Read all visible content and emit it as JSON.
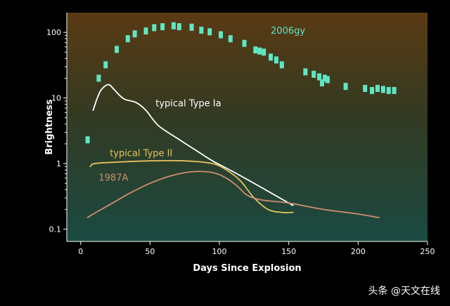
{
  "chart_data": {
    "type": "scatter",
    "title": "",
    "xlabel": "Days Since Explosion",
    "ylabel": "Brightness",
    "xlim": [
      -10,
      250
    ],
    "ylim": [
      0.065,
      200
    ],
    "y_scale": "log",
    "x_ticks": [
      0,
      50,
      100,
      150,
      200,
      250
    ],
    "y_ticks": [
      0.1,
      1,
      10,
      100
    ],
    "grid": false,
    "legend": "none",
    "series": [
      {
        "name": "2006gy",
        "type": "scatter",
        "color": "#5fe6c4",
        "points": [
          [
            5,
            2.3
          ],
          [
            13,
            20
          ],
          [
            18,
            32
          ],
          [
            26,
            55
          ],
          [
            34,
            80
          ],
          [
            39,
            95
          ],
          [
            47,
            105
          ],
          [
            53,
            118
          ],
          [
            59,
            122
          ],
          [
            67,
            126
          ],
          [
            71,
            122
          ],
          [
            80,
            120
          ],
          [
            87,
            108
          ],
          [
            93,
            102
          ],
          [
            101,
            92
          ],
          [
            108,
            80
          ],
          [
            118,
            68
          ],
          [
            126,
            54
          ],
          [
            129,
            52
          ],
          [
            132,
            50
          ],
          [
            137,
            42
          ],
          [
            141,
            38
          ],
          [
            145,
            32
          ],
          [
            162,
            25
          ],
          [
            168,
            23
          ],
          [
            172,
            21
          ],
          [
            174,
            17
          ],
          [
            176,
            20
          ],
          [
            178,
            19
          ],
          [
            191,
            15
          ],
          [
            205,
            14
          ],
          [
            210,
            13
          ],
          [
            214,
            14
          ],
          [
            218,
            13.5
          ],
          [
            222,
            13
          ],
          [
            226,
            13
          ]
        ]
      },
      {
        "name": "typical Type Ia",
        "type": "line",
        "color": "#ffffff",
        "points": [
          [
            9,
            6.5
          ],
          [
            12,
            10
          ],
          [
            15,
            13.5
          ],
          [
            20,
            16
          ],
          [
            24,
            13.5
          ],
          [
            28,
            11
          ],
          [
            32,
            9.5
          ],
          [
            40,
            8.5
          ],
          [
            47,
            6.5
          ],
          [
            56,
            3.8
          ],
          [
            70,
            2.4
          ],
          [
            85,
            1.5
          ],
          [
            95,
            1.1
          ],
          [
            110,
            0.75
          ],
          [
            125,
            0.5
          ],
          [
            140,
            0.33
          ],
          [
            153,
            0.23
          ]
        ]
      },
      {
        "name": "typical Type II",
        "type": "line",
        "color": "#e6c35a",
        "points": [
          [
            7,
            0.9
          ],
          [
            10,
            1.0
          ],
          [
            25,
            1.05
          ],
          [
            50,
            1.1
          ],
          [
            75,
            1.1
          ],
          [
            95,
            1.0
          ],
          [
            105,
            0.8
          ],
          [
            115,
            0.55
          ],
          [
            125,
            0.3
          ],
          [
            135,
            0.2
          ],
          [
            145,
            0.18
          ],
          [
            153,
            0.18
          ]
        ]
      },
      {
        "name": "1987A",
        "type": "line",
        "color": "#d08c70",
        "points": [
          [
            5,
            0.15
          ],
          [
            9,
            0.17
          ],
          [
            20,
            0.23
          ],
          [
            35,
            0.35
          ],
          [
            50,
            0.5
          ],
          [
            65,
            0.65
          ],
          [
            80,
            0.75
          ],
          [
            95,
            0.73
          ],
          [
            105,
            0.6
          ],
          [
            113,
            0.45
          ],
          [
            120,
            0.33
          ],
          [
            130,
            0.28
          ],
          [
            150,
            0.25
          ],
          [
            175,
            0.2
          ],
          [
            200,
            0.17
          ],
          [
            215,
            0.15
          ]
        ]
      }
    ],
    "annotations": [
      {
        "text": "2006gy",
        "x": 137,
        "y": 95,
        "color": "#5fe6c4"
      },
      {
        "text": "typical Type Ia",
        "x": 54,
        "y": 7.5,
        "color": "#ffffff"
      },
      {
        "text": "typical Type II",
        "x": 21,
        "y": 1.3,
        "color": "#e6c35a"
      },
      {
        "text": "1987A",
        "x": 13,
        "y": 0.55,
        "color": "#d08c70"
      }
    ]
  },
  "watermark": "头条 @天文在线",
  "colors": {
    "panel_top": "#5a3a14",
    "panel_mid": "#333a22",
    "panel_bottom": "#1a4a42",
    "axis": "#ffffff"
  }
}
